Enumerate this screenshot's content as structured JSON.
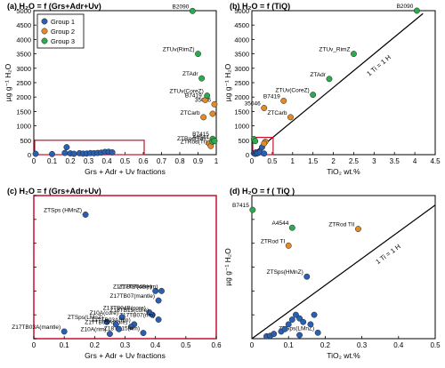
{
  "chart_data": [
    {
      "type": "scatter",
      "title": "(a) H₂O = f (Grs+Adr+Uv)",
      "xlabel": "Grs + Adr + Uv fractions",
      "ylabel": "µg g⁻¹ H₂O",
      "xlim": [
        0,
        1
      ],
      "ylim": [
        0,
        5000
      ],
      "xticks": [
        "0",
        "0.1",
        "0.2",
        "0.3",
        "0.4",
        "0.5",
        "0.6",
        "0.7",
        "0.8",
        "0.9",
        "1"
      ],
      "yticks": [
        "0",
        "500",
        "1000",
        "1500",
        "2000",
        "2500",
        "3000",
        "3500",
        "4000",
        "4500",
        "5000"
      ],
      "legend": {
        "position": "top-left",
        "entries": [
          "Group 1",
          "Group 2",
          "Group 3"
        ]
      },
      "inset_box": {
        "x": [
          0,
          0.6
        ],
        "y": [
          0,
          500
        ]
      },
      "series": [
        {
          "name": "Group 1",
          "color": "#2b5fb0",
          "points": [
            {
              "x": 0.01,
              "y": 30
            },
            {
              "x": 0.1,
              "y": 20
            },
            {
              "x": 0.17,
              "y": 60
            },
            {
              "x": 0.18,
              "y": 260
            },
            {
              "x": 0.2,
              "y": 45
            },
            {
              "x": 0.22,
              "y": 30
            },
            {
              "x": 0.25,
              "y": 50
            },
            {
              "x": 0.27,
              "y": 35
            },
            {
              "x": 0.29,
              "y": 40
            },
            {
              "x": 0.31,
              "y": 55
            },
            {
              "x": 0.33,
              "y": 50
            },
            {
              "x": 0.35,
              "y": 60
            },
            {
              "x": 0.37,
              "y": 70
            },
            {
              "x": 0.39,
              "y": 95
            },
            {
              "x": 0.41,
              "y": 100
            },
            {
              "x": 0.43,
              "y": 80
            }
          ]
        },
        {
          "name": "Group 2",
          "color": "#e08a2a",
          "points": [
            {
              "x": 0.99,
              "y": 1750,
              "label": "35046"
            },
            {
              "x": 0.94,
              "y": 1900,
              "label": "B7419"
            },
            {
              "x": 0.93,
              "y": 1300,
              "label": "ZTCarb"
            },
            {
              "x": 0.98,
              "y": 1420
            },
            {
              "x": 0.96,
              "y": 400,
              "label": "ZTRod(TII)"
            },
            {
              "x": 0.97,
              "y": 300,
              "label": "ZTRod(TI)"
            }
          ]
        },
        {
          "name": "Group 3",
          "color": "#2fa84f",
          "points": [
            {
              "x": 0.87,
              "y": 4990,
              "label": "B2090"
            },
            {
              "x": 0.9,
              "y": 3500,
              "label": "ZTUv(RimZ)"
            },
            {
              "x": 0.92,
              "y": 2650,
              "label": "ZTAdr"
            },
            {
              "x": 0.95,
              "y": 2050,
              "label": "ZTUv(CoreZ)"
            },
            {
              "x": 0.98,
              "y": 550,
              "label": "B7415"
            },
            {
              "x": 0.98,
              "y": 450,
              "label": "A4544"
            },
            {
              "x": 0.99,
              "y": 480
            }
          ]
        }
      ]
    },
    {
      "type": "scatter",
      "title": "(b) H₂O = f (TiQ)",
      "xlabel": "TiO₂ wt.%",
      "ylabel": "µg g⁻¹ H₂O",
      "xlim": [
        0,
        4.5
      ],
      "ylim": [
        0,
        5000
      ],
      "xticks": [
        "0",
        "0.5",
        "1",
        "1.5",
        "2",
        "2.5",
        "3",
        "3.5",
        "4",
        "4.5"
      ],
      "yticks": [
        "0",
        "500",
        "1000",
        "1500",
        "2000",
        "2500",
        "3000",
        "3500",
        "4000",
        "4500",
        "5000"
      ],
      "line": {
        "label": "1 Ti = 1 H",
        "points": [
          {
            "x": 0,
            "y": 0
          },
          {
            "x": 4.2,
            "y": 4900
          }
        ]
      },
      "inset_box": {
        "x": [
          0,
          0.5
        ],
        "y": [
          0,
          600
        ]
      },
      "series": [
        {
          "name": "Group 1",
          "color": "#2b5fb0",
          "points": [
            {
              "x": 0.05,
              "y": 50
            },
            {
              "x": 0.08,
              "y": 30
            },
            {
              "x": 0.1,
              "y": 80
            },
            {
              "x": 0.12,
              "y": 40
            },
            {
              "x": 0.15,
              "y": 60
            },
            {
              "x": 0.2,
              "y": 90
            },
            {
              "x": 0.25,
              "y": 260
            },
            {
              "x": 0.3,
              "y": 40
            }
          ]
        },
        {
          "name": "Group 2",
          "color": "#e08a2a",
          "points": [
            {
              "x": 0.33,
              "y": 450
            },
            {
              "x": 0.3,
              "y": 390
            },
            {
              "x": 0.3,
              "y": 1620,
              "label": "35046"
            },
            {
              "x": 0.78,
              "y": 1870,
              "label": "B7419"
            },
            {
              "x": 0.95,
              "y": 1300,
              "label": "ZTCarb"
            }
          ]
        },
        {
          "name": "Group 3",
          "color": "#2fa84f",
          "points": [
            {
              "x": 4.05,
              "y": 5000,
              "label": "B2090"
            },
            {
              "x": 2.5,
              "y": 3500,
              "label": "ZTUv_RimZ"
            },
            {
              "x": 1.9,
              "y": 2630,
              "label": "ZTAdr"
            },
            {
              "x": 1.5,
              "y": 2080,
              "label": "ZTUv(CoreZ)"
            },
            {
              "x": 0.05,
              "y": 540
            },
            {
              "x": 0.08,
              "y": 470
            }
          ]
        }
      ]
    },
    {
      "type": "scatter",
      "title": "(c) H₂O = f (Grs+Adr+Uv)",
      "xlabel": "Grs + Adr + Uv fractions",
      "ylabel": "",
      "xlim": [
        0,
        0.6
      ],
      "ylim": [
        0,
        300
      ],
      "xticks": [
        "0",
        "0.1",
        "0.2",
        "0.3",
        "0.4",
        "0.5",
        "0.6"
      ],
      "series": [
        {
          "name": "Group 1",
          "color": "#2b5fb0",
          "points": [
            {
              "x": 0.17,
              "y": 260,
              "label": "ZTSps (HMnZ)"
            },
            {
              "x": 0.4,
              "y": 100,
              "label": "Z17TB07(core)"
            },
            {
              "x": 0.42,
              "y": 100,
              "label": "Z17TB04B(rim)"
            },
            {
              "x": 0.41,
              "y": 80,
              "label": "Z17TB07(mantle)"
            },
            {
              "x": 0.38,
              "y": 55,
              "label": "Z17TB04B(core)"
            },
            {
              "x": 0.39,
              "y": 50,
              "label": "Z18TB15(core)"
            },
            {
              "x": 0.41,
              "y": 40,
              "label": "Z17TB07(rim)"
            },
            {
              "x": 0.29,
              "y": 45,
              "label": "Z10A(core)"
            },
            {
              "x": 0.24,
              "y": 35,
              "label": "ZTSps(LMnZ)"
            },
            {
              "x": 0.33,
              "y": 30,
              "label": "Z17TB03A(rim)"
            },
            {
              "x": 0.32,
              "y": 25,
              "label": "Z17TB03A(core)"
            },
            {
              "x": 0.1,
              "y": 15,
              "label": "Z17TB03A(mantle)"
            },
            {
              "x": 0.25,
              "y": 10,
              "label": "Z10A(rim)"
            },
            {
              "x": 0.36,
              "y": 12,
              "label": "Z18TB15(rim)"
            },
            {
              "x": 0.27,
              "y": 30
            },
            {
              "x": 0.28,
              "y": 20
            }
          ]
        }
      ]
    },
    {
      "type": "scatter",
      "title": "(d) H₂O = f ( TiQ )",
      "xlabel": "TiO₂ wt.%",
      "ylabel": "µg g⁻¹ H₂O",
      "xlim": [
        0,
        0.5
      ],
      "ylim": [
        0,
        600
      ],
      "xticks": [
        "0",
        "0.1",
        "0.2",
        "0.3",
        "0.4",
        "0.5"
      ],
      "line": {
        "label": "1 Ti = 1 H",
        "points": [
          {
            "x": 0,
            "y": 0
          },
          {
            "x": 0.5,
            "y": 560
          }
        ]
      },
      "series": [
        {
          "name": "Group 1",
          "color": "#2b5fb0",
          "points": [
            {
              "x": 0.15,
              "y": 260,
              "label": "ZTSps(HMnZ)"
            },
            {
              "x": 0.18,
              "y": 25,
              "label": "ZTSps(LMnZ)"
            },
            {
              "x": 0.04,
              "y": 10
            },
            {
              "x": 0.05,
              "y": 12
            },
            {
              "x": 0.06,
              "y": 20
            },
            {
              "x": 0.08,
              "y": 30
            },
            {
              "x": 0.09,
              "y": 40
            },
            {
              "x": 0.1,
              "y": 60
            },
            {
              "x": 0.11,
              "y": 80
            },
            {
              "x": 0.12,
              "y": 100
            },
            {
              "x": 0.13,
              "y": 85
            },
            {
              "x": 0.14,
              "y": 70
            },
            {
              "x": 0.16,
              "y": 60
            },
            {
              "x": 0.17,
              "y": 100
            },
            {
              "x": 0.13,
              "y": 15
            }
          ]
        },
        {
          "name": "Group 2",
          "color": "#e08a2a",
          "points": [
            {
              "x": 0.29,
              "y": 460,
              "label": "ZTRod TII"
            },
            {
              "x": 0.1,
              "y": 390,
              "label": "ZTRod TI"
            }
          ]
        },
        {
          "name": "Group 3",
          "color": "#2fa84f",
          "points": [
            {
              "x": 0.002,
              "y": 540,
              "label": "B7415"
            },
            {
              "x": 0.11,
              "y": 465,
              "label": "A4544"
            }
          ]
        }
      ]
    }
  ],
  "text": {
    "ylabel_c": "",
    "line_label_b": "1 Ti = 1 H",
    "line_label_d": "1 Ti = 1 H"
  }
}
